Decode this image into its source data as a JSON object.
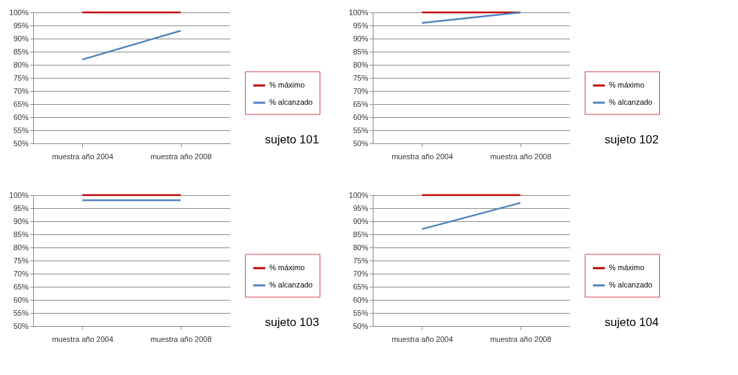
{
  "chart_data": [
    {
      "type": "line",
      "categories": [
        "muestra año 2004",
        "muestra año 2008"
      ],
      "ylim": [
        50,
        100
      ],
      "yticks": [
        {
          "value": 50,
          "label": "50%"
        },
        {
          "value": 55,
          "label": "55%"
        },
        {
          "value": 60,
          "label": "60%"
        },
        {
          "value": 65,
          "label": "65%"
        },
        {
          "value": 70,
          "label": "70%"
        },
        {
          "value": 75,
          "label": "75%"
        },
        {
          "value": 80,
          "label": "80%"
        },
        {
          "value": 85,
          "label": "85%"
        },
        {
          "value": 90,
          "label": "90%"
        },
        {
          "value": 95,
          "label": "95%"
        },
        {
          "value": 100,
          "label": "100%"
        }
      ],
      "grid": "y",
      "legend": "right",
      "marker": "none",
      "annotations": [
        "sujeto 101"
      ],
      "series": [
        {
          "name": "% máximo",
          "color": "#c00000",
          "values": [
            100,
            100
          ]
        },
        {
          "name": "% alcanzado",
          "color": "#4f81bd",
          "values": [
            82,
            93
          ]
        }
      ]
    },
    {
      "type": "line",
      "categories": [
        "muestra año 2004",
        "muestra año 2008"
      ],
      "ylim": [
        50,
        100
      ],
      "yticks": [
        {
          "value": 50,
          "label": "50%"
        },
        {
          "value": 55,
          "label": "55%"
        },
        {
          "value": 60,
          "label": "60%"
        },
        {
          "value": 65,
          "label": "65%"
        },
        {
          "value": 70,
          "label": "70%"
        },
        {
          "value": 75,
          "label": "75%"
        },
        {
          "value": 80,
          "label": "80%"
        },
        {
          "value": 85,
          "label": "85%"
        },
        {
          "value": 90,
          "label": "90%"
        },
        {
          "value": 95,
          "label": "95%"
        },
        {
          "value": 100,
          "label": "100%"
        }
      ],
      "grid": "y",
      "legend": "right",
      "marker": "none",
      "annotations": [
        "sujeto 102"
      ],
      "series": [
        {
          "name": "% máximo",
          "color": "#c00000",
          "values": [
            100,
            100
          ]
        },
        {
          "name": "% alcanzado",
          "color": "#4f81bd",
          "values": [
            96,
            100
          ]
        }
      ]
    },
    {
      "type": "line",
      "categories": [
        "muestra año 2004",
        "muestra año 2008"
      ],
      "ylim": [
        50,
        100
      ],
      "yticks": [
        {
          "value": 50,
          "label": "50%"
        },
        {
          "value": 55,
          "label": "55%"
        },
        {
          "value": 60,
          "label": "60%"
        },
        {
          "value": 65,
          "label": "65%"
        },
        {
          "value": 70,
          "label": "70%"
        },
        {
          "value": 75,
          "label": "75%"
        },
        {
          "value": 80,
          "label": "80%"
        },
        {
          "value": 85,
          "label": "85%"
        },
        {
          "value": 90,
          "label": "90%"
        },
        {
          "value": 95,
          "label": "95%"
        },
        {
          "value": 100,
          "label": "100%"
        }
      ],
      "grid": "y",
      "legend": "right",
      "marker": "none",
      "annotations": [
        "sujeto 103"
      ],
      "series": [
        {
          "name": "% máximo",
          "color": "#c00000",
          "values": [
            100,
            100
          ]
        },
        {
          "name": "% alcanzado",
          "color": "#4f81bd",
          "values": [
            98,
            98
          ]
        }
      ]
    },
    {
      "type": "line",
      "categories": [
        "muestra año 2004",
        "muestra año 2008"
      ],
      "ylim": [
        50,
        100
      ],
      "yticks": [
        {
          "value": 50,
          "label": "50%"
        },
        {
          "value": 55,
          "label": "55%"
        },
        {
          "value": 60,
          "label": "60%"
        },
        {
          "value": 65,
          "label": "65%"
        },
        {
          "value": 70,
          "label": "70%"
        },
        {
          "value": 75,
          "label": "75%"
        },
        {
          "value": 80,
          "label": "80%"
        },
        {
          "value": 85,
          "label": "85%"
        },
        {
          "value": 90,
          "label": "90%"
        },
        {
          "value": 95,
          "label": "95%"
        },
        {
          "value": 100,
          "label": "100%"
        }
      ],
      "grid": "y",
      "legend": "right",
      "marker": "none",
      "annotations": [
        "sujeto 104"
      ],
      "series": [
        {
          "name": "% máximo",
          "color": "#c00000",
          "values": [
            100,
            100
          ]
        },
        {
          "name": "% alcanzado",
          "color": "#4f81bd",
          "values": [
            87,
            97
          ]
        }
      ]
    }
  ]
}
